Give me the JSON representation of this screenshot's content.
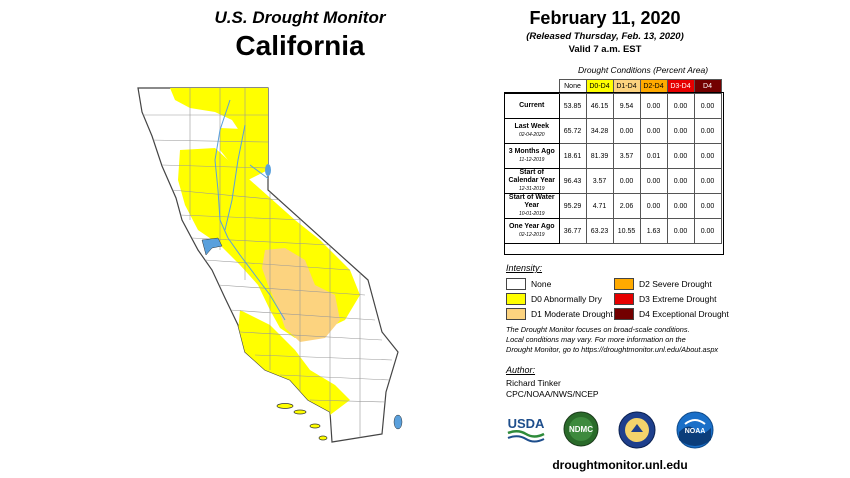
{
  "header": {
    "title": "U.S. Drought Monitor",
    "state": "California",
    "date": "February 11, 2020",
    "released": "(Released Thursday, Feb. 13, 2020)",
    "valid": "Valid 7 a.m. EST"
  },
  "table": {
    "caption": "Drought Conditions (Percent Area)",
    "columns": [
      "None",
      "D0-D4",
      "D1-D4",
      "D2-D4",
      "D3-D4",
      "D4"
    ],
    "column_colors": [
      "#ffffff",
      "#ffff00",
      "#fcd37f",
      "#ffaa00",
      "#e60000",
      "#730000"
    ],
    "column_text_colors": [
      "#000000",
      "#000000",
      "#000000",
      "#000000",
      "#ffffff",
      "#ffffff"
    ],
    "rows": [
      {
        "label": "Current",
        "sub": "",
        "values": [
          "53.85",
          "46.15",
          "9.54",
          "0.00",
          "0.00",
          "0.00"
        ]
      },
      {
        "label": "Last Week",
        "sub": "02-04-2020",
        "values": [
          "65.72",
          "34.28",
          "0.00",
          "0.00",
          "0.00",
          "0.00"
        ]
      },
      {
        "label": "3 Months Ago",
        "sub": "11-12-2019",
        "values": [
          "18.61",
          "81.39",
          "3.57",
          "0.01",
          "0.00",
          "0.00"
        ]
      },
      {
        "label": "Start of Calendar Year",
        "sub": "12-31-2019",
        "values": [
          "96.43",
          "3.57",
          "0.00",
          "0.00",
          "0.00",
          "0.00"
        ]
      },
      {
        "label": "Start of Water Year",
        "sub": "10-01-2019",
        "values": [
          "95.29",
          "4.71",
          "2.06",
          "0.00",
          "0.00",
          "0.00"
        ]
      },
      {
        "label": "One Year Ago",
        "sub": "02-12-2019",
        "values": [
          "36.77",
          "63.23",
          "10.55",
          "1.63",
          "0.00",
          "0.00"
        ]
      }
    ]
  },
  "legend": {
    "title": "Intensity:",
    "items": [
      {
        "label": "None",
        "color": "#ffffff"
      },
      {
        "label": "D0 Abnormally Dry",
        "color": "#ffff00"
      },
      {
        "label": "D1 Moderate Drought",
        "color": "#fcd37f"
      },
      {
        "label": "D2 Severe Drought",
        "color": "#ffaa00"
      },
      {
        "label": "D3 Extreme Drought",
        "color": "#e60000"
      },
      {
        "label": "D4 Exceptional Drought",
        "color": "#730000"
      }
    ]
  },
  "note": {
    "line1": "The Drought Monitor focuses on broad-scale conditions.",
    "line2": "Local conditions may vary. For more information on the",
    "line3": "Drought Monitor, go to https://droughtmonitor.unl.edu/About.aspx"
  },
  "author": {
    "title": "Author:",
    "name": "Richard Tinker",
    "org": "CPC/NOAA/NWS/NCEP"
  },
  "logos": {
    "usda": "USDA",
    "ndmc": "NDMC",
    "noaa": "NOAA"
  },
  "url": "droughtmonitor.unl.edu",
  "map": {
    "colors": {
      "none": "#ffffff",
      "d0": "#ffff00",
      "d1": "#fcd37f",
      "border": "#888888",
      "outline": "#444444",
      "water": "#5aa0dc"
    }
  }
}
